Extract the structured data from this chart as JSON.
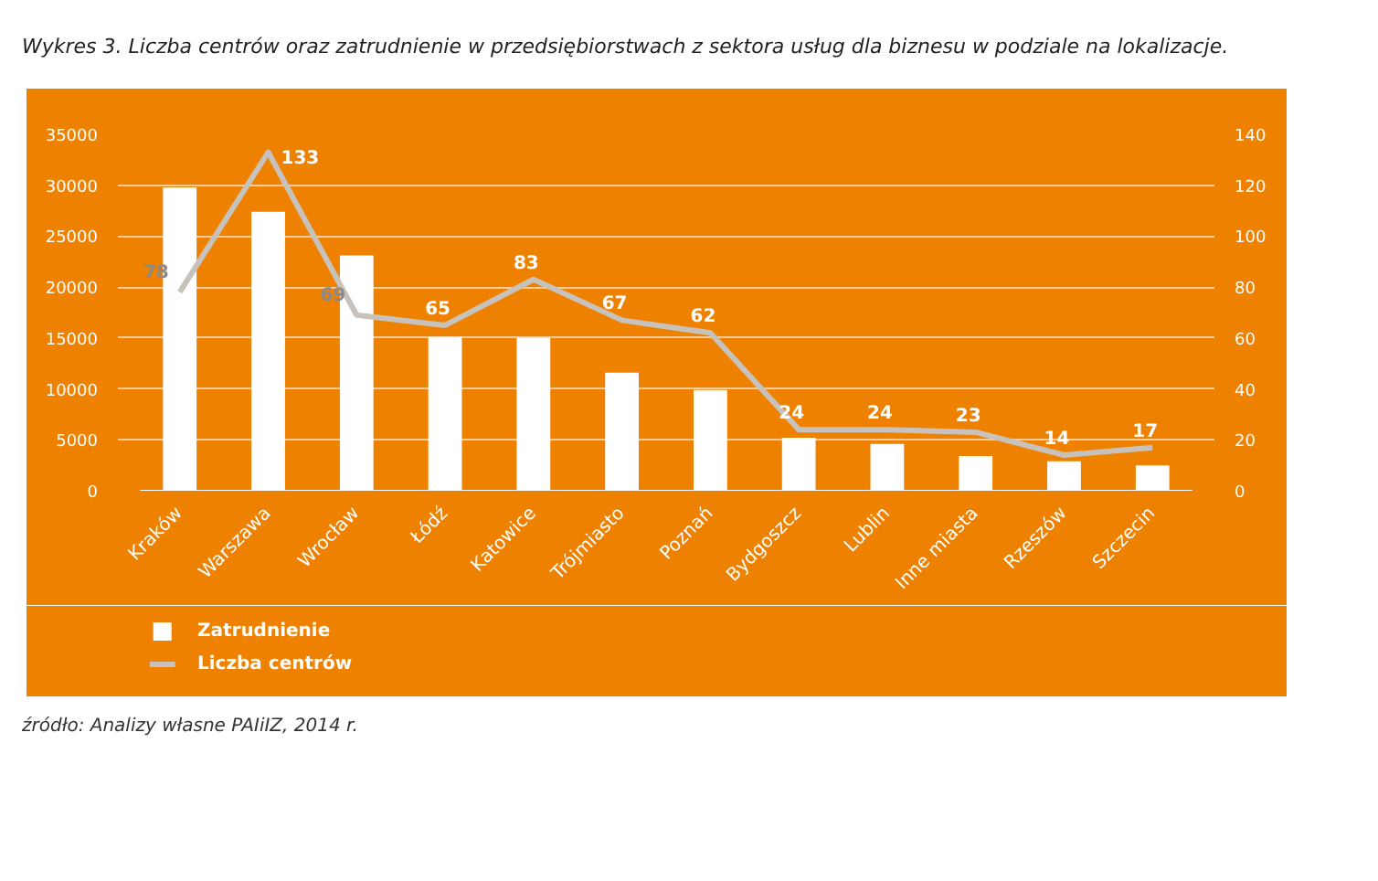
{
  "chart_data": {
    "type": "bar",
    "title": "Wykres 3. Liczba centrów oraz zatrudnienie w przedsiębiorstwach z sektora usług dla biznesu w podziale na lokalizacje.",
    "categories": [
      "Kraków",
      "Warszawa",
      "Wrocław",
      "Łódź",
      "Katowice",
      "Trójmiasto",
      "Poznań",
      "Bydgoszcz",
      "Lublin",
      "Inne miasta",
      "Rzeszów",
      "Szczecin"
    ],
    "series": [
      {
        "name": "Zatrudnienie",
        "color": "#ffffff",
        "values": [
          29800,
          27400,
          23100,
          15100,
          15000,
          11600,
          9900,
          5200,
          4600,
          3400,
          2900,
          2500
        ]
      },
      {
        "name": "Liczba centrów",
        "type": "line",
        "axis": "y2",
        "color": "#c8c2bc",
        "values": [
          78,
          133,
          69,
          65,
          83,
          67,
          62,
          24,
          24,
          23,
          14,
          17
        ],
        "value_labels": [
          "78",
          "133",
          "69",
          "65",
          "83",
          "67",
          "62",
          "24",
          "24",
          "23",
          "14",
          "17"
        ]
      }
    ],
    "ylim": [
      0,
      35000
    ],
    "yticks": [
      0,
      5000,
      10000,
      15000,
      20000,
      25000,
      30000,
      35000
    ],
    "y2lim": [
      0,
      140
    ],
    "y2ticks": [
      0,
      20,
      40,
      60,
      80,
      100,
      120,
      140
    ],
    "grid": "y",
    "legend": "bottom left",
    "annotations": [
      "źródło: Analizy własne PAIiIZ, 2014 r."
    ]
  }
}
